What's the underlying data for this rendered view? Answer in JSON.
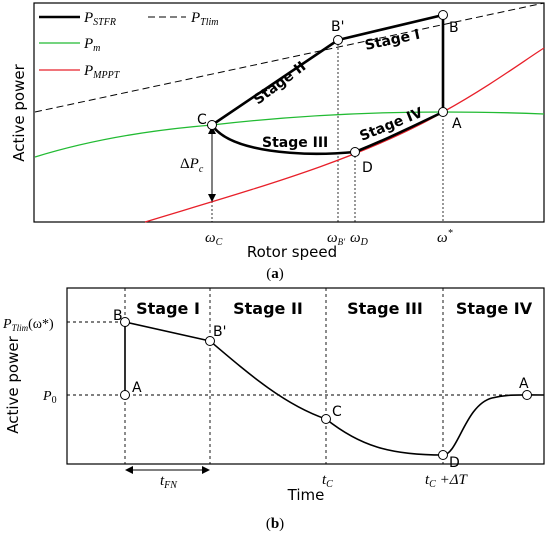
{
  "figure_a": {
    "legend": {
      "stfr_main": "P",
      "stfr_sub": "STFR",
      "tlim_main": "P",
      "tlim_sub": "Tlim",
      "m_main": "P",
      "m_sub": "m",
      "mppt_main": "P",
      "mppt_sub": "MPPT"
    },
    "points": {
      "B_prime": "B'",
      "B": "B",
      "C": "C",
      "A": "A",
      "D": "D"
    },
    "stages": {
      "s1": "Stage I",
      "s2": "Stage II",
      "s3": "Stage III",
      "s4": "Stage IV"
    },
    "delta_pc": {
      "delta": "Δ",
      "main": "P",
      "sub": "c"
    },
    "y_label": "Active power",
    "x_label": "Rotor speed",
    "x_ticks": {
      "wc_main": "ω",
      "wc_sub": "C",
      "wb_main": "ω",
      "wb_sub": "B'",
      "wd_main": "ω",
      "wd_sub": "D",
      "wstar_main": "ω",
      "wstar_sup": "*"
    },
    "caption": {
      "open": "(",
      "letter": "a",
      "close": ")"
    }
  },
  "figure_b": {
    "stages": {
      "s1": "Stage I",
      "s2": "Stage II",
      "s3": "Stage III",
      "s4": "Stage IV"
    },
    "y_ticks": {
      "ptlim_main": "P",
      "ptlim_sub": "Tlim",
      "ptlim_arg": "(ω*)",
      "p0_main": "P",
      "p0_sub": "0"
    },
    "points": {
      "B": "B",
      "B_prime": "B'",
      "A_left": "A",
      "C": "C",
      "D": "D",
      "A_right": "A"
    },
    "y_label": "Active power",
    "x_label": "Time",
    "x_ticks": {
      "tfn_main": "t",
      "tfn_sub": "FN",
      "tc_main": "t",
      "tc_sub": "C",
      "tcdt_main": "t",
      "tcdt_sub": "C",
      "tcdt_suffix": " +ΔT"
    },
    "caption": {
      "open": "(",
      "letter": "b",
      "close": ")"
    }
  },
  "colors": {
    "stfr": "#000000",
    "tlim": "#000000",
    "pm": "#22bb33",
    "mppt": "#e8202a"
  }
}
